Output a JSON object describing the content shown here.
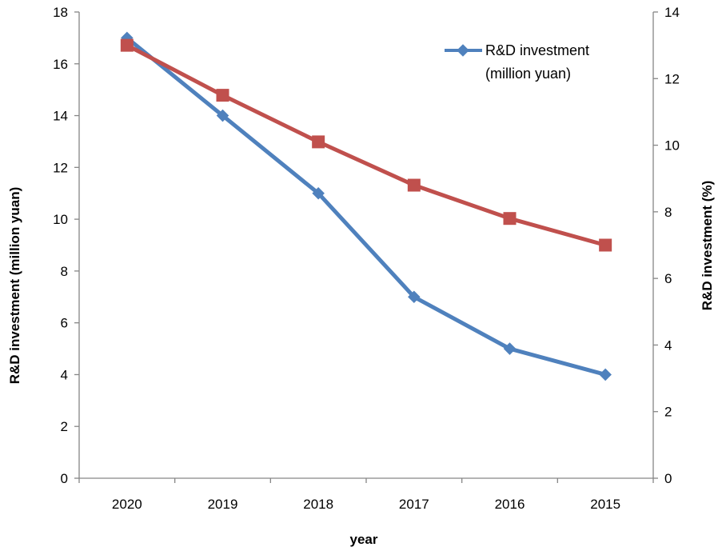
{
  "chart_data": {
    "type": "line",
    "categories": [
      "2020",
      "2019",
      "2018",
      "2017",
      "2016",
      "2015"
    ],
    "xlabel": "year",
    "ylabel_left": "R&D investment (million yuan)",
    "ylabel_right": "R&D investment (%)",
    "ylim_left": [
      0,
      18
    ],
    "ylim_right": [
      0,
      14
    ],
    "yticks_left": [
      0,
      2,
      4,
      6,
      8,
      10,
      12,
      14,
      16,
      18
    ],
    "yticks_right": [
      0,
      2,
      4,
      6,
      8,
      10,
      12,
      14
    ],
    "grid": false,
    "legend_position": "top-right",
    "series": [
      {
        "name": "R&D investment (million yuan)",
        "legend_lines": [
          "R&D investment",
          "(million yuan)"
        ],
        "axis": "left",
        "marker": "diamond",
        "color": "#4F81BD",
        "values": [
          17,
          14,
          11,
          7,
          5,
          4
        ]
      },
      {
        "axis": "right",
        "marker": "square",
        "color": "#C0504D",
        "values": [
          13,
          11.5,
          10.1,
          8.8,
          7.8,
          7
        ]
      }
    ]
  }
}
